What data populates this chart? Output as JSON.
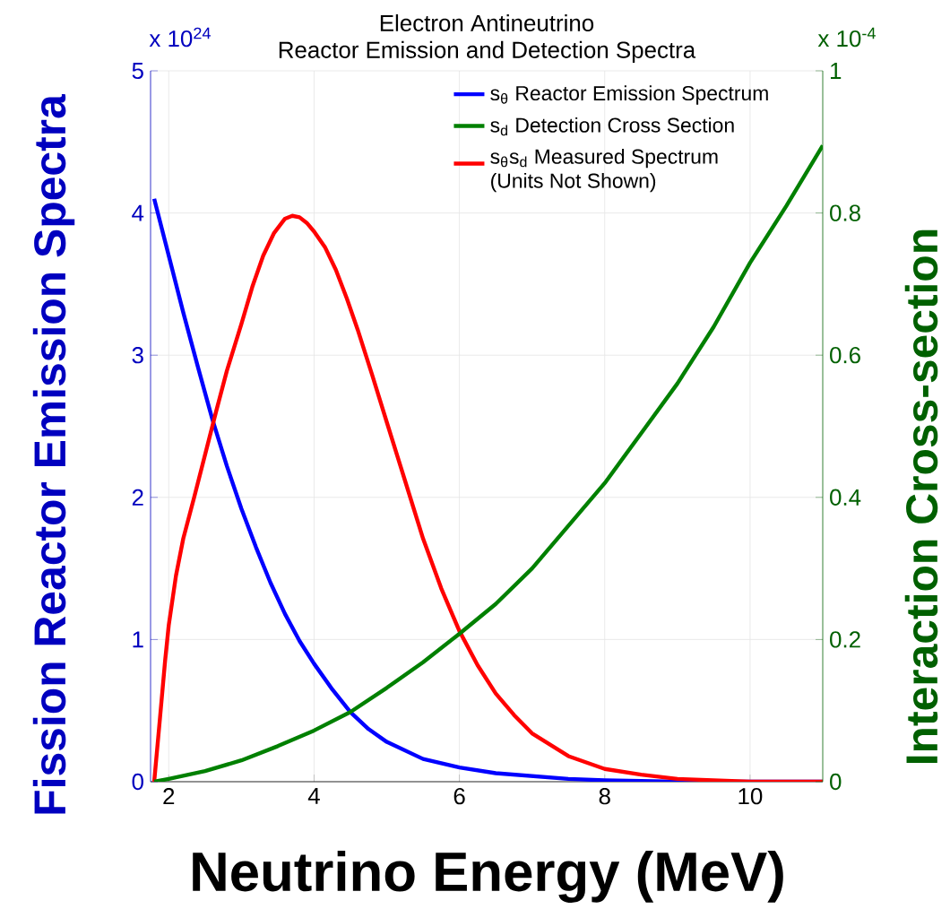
{
  "chart_data": {
    "type": "line",
    "title": "Electron Antineutrino",
    "subtitle": "Reactor Emission and Detection Spectra",
    "xlabel": "Neutrino Energy (MeV)",
    "ylabel": "Fission Reactor Emission Spectra",
    "y2label": "Interaction Cross-section",
    "annotations": [
      "x 10$^{24}$",
      "x 10$^{-4}$"
    ],
    "xlim": [
      1.75,
      11
    ],
    "xticks": [
      2,
      4,
      6,
      8,
      10
    ],
    "ylim": [
      0,
      5
    ],
    "yticks": [
      0,
      1,
      2,
      3,
      4,
      5
    ],
    "y2lim": [
      0,
      1
    ],
    "y2ticks": [
      0,
      0.2,
      0.4,
      0.6,
      0.8,
      1
    ],
    "grid": true,
    "legend": "top right",
    "series": [
      {
        "name": "s$_{θ}$ Reactor Emission Spectrum",
        "color": "#0000ff",
        "x": [
          1.8,
          2.0,
          2.2,
          2.4,
          2.6,
          2.8,
          3.0,
          3.2,
          3.4,
          3.6,
          3.8,
          4.0,
          4.25,
          4.5,
          4.75,
          5.0,
          5.5,
          6.0,
          6.5,
          7.0,
          7.5,
          8.0,
          9.0,
          11.0
        ],
        "values": [
          4.1,
          3.7,
          3.3,
          2.92,
          2.55,
          2.22,
          1.92,
          1.65,
          1.4,
          1.18,
          0.99,
          0.83,
          0.65,
          0.49,
          0.37,
          0.28,
          0.16,
          0.1,
          0.06,
          0.04,
          0.02,
          0.01,
          0,
          0
        ]
      },
      {
        "name": "s$_{d}$ Detection Cross Section",
        "color": "#008000",
        "axis": "y2",
        "x": [
          1.8,
          2.0,
          2.5,
          3.0,
          3.5,
          4.0,
          4.5,
          5.0,
          5.5,
          6.0,
          6.5,
          7.0,
          7.5,
          8.0,
          8.5,
          9.0,
          9.5,
          10.0,
          10.5,
          11.0
        ],
        "values": [
          0,
          0.004,
          0.015,
          0.03,
          0.05,
          0.072,
          0.098,
          0.132,
          0.168,
          0.208,
          0.25,
          0.3,
          0.36,
          0.42,
          0.49,
          0.56,
          0.64,
          0.73,
          0.81,
          0.895
        ]
      },
      {
        "name": "s$_{θ}$s$_{d}$ Measured Spectrum (Units Not Shown)",
        "color": "#ff0000",
        "x": [
          1.8,
          1.88,
          1.95,
          2.0,
          2.1,
          2.2,
          2.35,
          2.5,
          2.65,
          2.8,
          3.0,
          3.15,
          3.3,
          3.45,
          3.6,
          3.7,
          3.8,
          3.9,
          4.0,
          4.15,
          4.3,
          4.45,
          4.6,
          4.8,
          5.0,
          5.25,
          5.5,
          5.75,
          6.0,
          6.25,
          6.5,
          6.75,
          7.0,
          7.5,
          8.0,
          8.5,
          9.0,
          10.0,
          11.0
        ],
        "values": [
          0,
          0.45,
          0.85,
          1.1,
          1.45,
          1.71,
          2.0,
          2.3,
          2.6,
          2.89,
          3.22,
          3.48,
          3.7,
          3.86,
          3.96,
          3.98,
          3.97,
          3.93,
          3.87,
          3.76,
          3.6,
          3.4,
          3.18,
          2.86,
          2.53,
          2.12,
          1.71,
          1.36,
          1.06,
          0.82,
          0.62,
          0.47,
          0.34,
          0.18,
          0.09,
          0.05,
          0.02,
          0,
          0
        ]
      }
    ]
  }
}
